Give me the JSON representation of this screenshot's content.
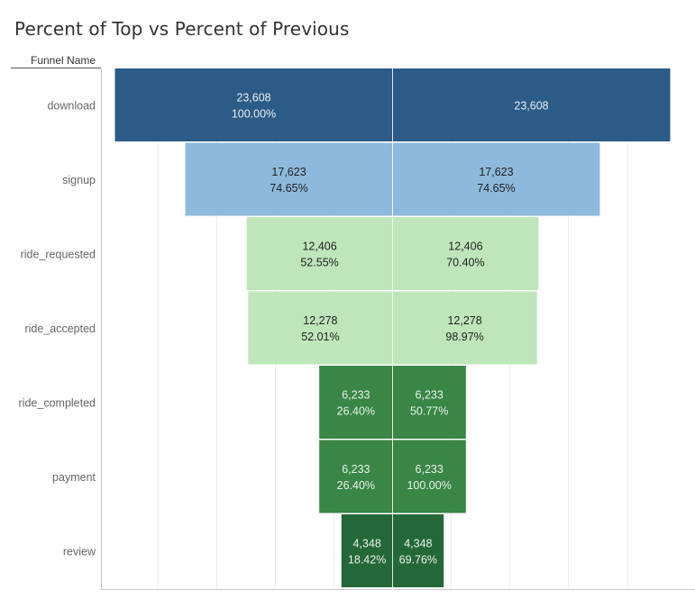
{
  "title": "Percent of Top vs Percent of Previous",
  "column_header": "Funnel Name",
  "chart_data": {
    "type": "bar",
    "subtype": "mirrored funnel",
    "categories": [
      "download",
      "signup",
      "ride_requested",
      "ride_accepted",
      "ride_completed",
      "payment",
      "review"
    ],
    "series": [
      {
        "side": "left",
        "values": [
          23608,
          17623,
          12406,
          12278,
          6233,
          6233,
          4348
        ],
        "count_labels": [
          "23,608",
          "17,623",
          "12,406",
          "12,278",
          "6,233",
          "6,233",
          "4,348"
        ],
        "percent_labels": [
          "100.00%",
          "74.65%",
          "52.55%",
          "52.01%",
          "26.40%",
          "26.40%",
          "18.42%"
        ]
      },
      {
        "side": "right",
        "values": [
          23608,
          17623,
          12406,
          12278,
          6233,
          6233,
          4348
        ],
        "count_labels": [
          "23,608",
          "17,623",
          "12,406",
          "12,278",
          "6,233",
          "6,233",
          "4,348"
        ],
        "percent_labels": [
          "",
          "74.65%",
          "70.40%",
          "98.97%",
          "50.77%",
          "100.00%",
          "69.76%"
        ]
      }
    ],
    "bar_colors": [
      "#2b5b87",
      "#8dbadc",
      "#bfe6bb",
      "#bfe6bb",
      "#398646",
      "#398646",
      "#256838"
    ],
    "text_colors": [
      "#e8eef5",
      "#222222",
      "#222222",
      "#222222",
      "#e8f2ea",
      "#e8f2ea",
      "#e8f2ea"
    ],
    "grid": true
  }
}
